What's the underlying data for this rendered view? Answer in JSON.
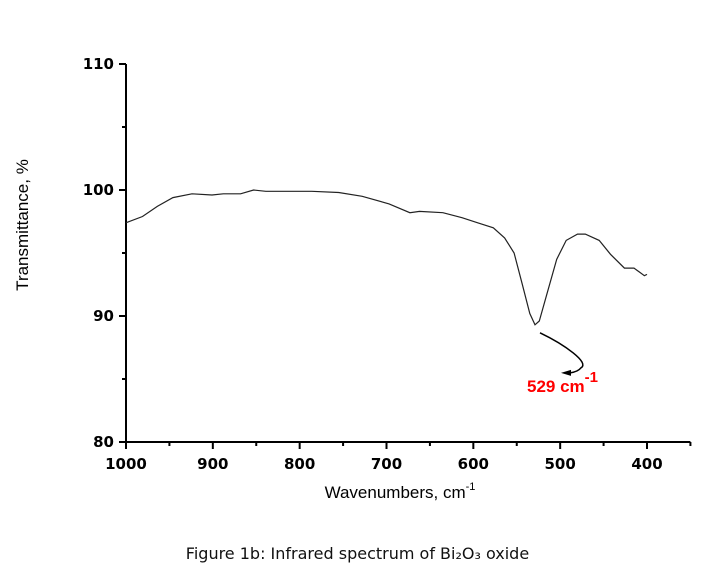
{
  "chart_data": {
    "type": "line",
    "xlabel": "Wavenumbers, cm",
    "xlabel_sup": "-1",
    "ylabel": "Transmittance, %",
    "xlim": [
      1000,
      350
    ],
    "ylim": [
      80,
      110
    ],
    "x_reversed": true,
    "grid": false,
    "x_ticks": [
      1000,
      900,
      800,
      700,
      600,
      500,
      400
    ],
    "y_ticks": [
      80,
      90,
      100,
      110
    ],
    "line_color": "#222222",
    "x": [
      1000,
      981,
      964,
      946,
      924,
      901,
      888,
      868,
      853,
      839,
      786,
      755,
      728,
      697,
      673,
      662,
      635,
      613,
      595,
      577,
      564,
      553,
      544,
      535,
      529,
      524,
      515,
      504,
      493,
      480,
      471,
      455,
      442,
      426,
      415,
      409,
      403,
      400
    ],
    "y": [
      97.4,
      97.9,
      98.7,
      99.4,
      99.7,
      99.6,
      99.7,
      99.7,
      100.0,
      99.9,
      99.9,
      99.8,
      99.5,
      98.9,
      98.2,
      98.3,
      98.2,
      97.8,
      97.4,
      97.0,
      96.2,
      95.0,
      92.6,
      90.2,
      89.3,
      89.6,
      91.8,
      94.5,
      96.0,
      96.5,
      96.5,
      96.0,
      94.9,
      93.8,
      93.8,
      93.5,
      93.2,
      93.3
    ],
    "annotation": {
      "text": "529 cm",
      "sup": "-1",
      "x": 529,
      "y": 89.3,
      "color": "#ff0000"
    }
  },
  "caption": "Figure 1b: Infrared spectrum of Bi₂O₃ oxide"
}
